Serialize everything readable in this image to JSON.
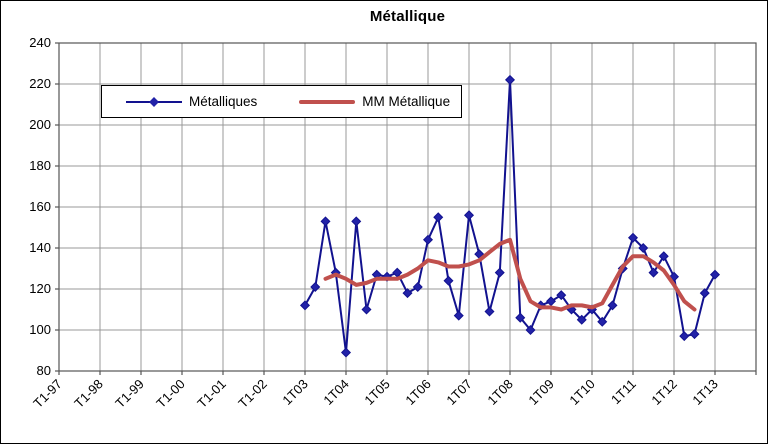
{
  "chart_data": {
    "type": "line",
    "title": "Métallique",
    "y_axis": {
      "min": 80,
      "max": 240,
      "step": 20,
      "tick_labels": [
        "240",
        "220",
        "200",
        "180",
        "160",
        "140",
        "120",
        "100",
        "80"
      ]
    },
    "x_axis": {
      "tick_labels": [
        "T1-97",
        "T1-98",
        "T1-99",
        "T1-00",
        "T1-01",
        "T1-02",
        "1T03",
        "1T04",
        "1T05",
        "1T06",
        "1T07",
        "1T08",
        "1T09",
        "1T10",
        "1T11",
        "1T12",
        "1T13"
      ],
      "quarters_per_tick": 4,
      "total_quarters": 68,
      "data_start_quarter": 24
    },
    "grid": true,
    "legend_position": "top-left-inside",
    "series": [
      {
        "name": "Métalliques",
        "style": "line-with-diamond-markers",
        "color": "#12128F",
        "marker_color": "#2222A8",
        "values": [
          112,
          121,
          153,
          128,
          89,
          153,
          110,
          127,
          126,
          128,
          118,
          121,
          144,
          155,
          124,
          107,
          156,
          137,
          109,
          128,
          222,
          106,
          100,
          112,
          114,
          117,
          110,
          105,
          110,
          104,
          112,
          130,
          145,
          140,
          128,
          136,
          126,
          97,
          98,
          118,
          127
        ]
      },
      {
        "name": "MM Métallique",
        "style": "smooth-line",
        "color": "#C0504D",
        "values": [
          null,
          null,
          125,
          127,
          125,
          122,
          123,
          125,
          125,
          125,
          127,
          130,
          134,
          133,
          131,
          131,
          132,
          134,
          138,
          142,
          144,
          125,
          114,
          111,
          111,
          110,
          112,
          112,
          111,
          113,
          122,
          131,
          136,
          136,
          133,
          129,
          122,
          114,
          110,
          null,
          null
        ]
      }
    ]
  },
  "colors": {
    "background": "#FFFFFF",
    "outer_border": "#000000",
    "gridline": "#999999",
    "plot_border": "#555555",
    "axis_tick": "#333333",
    "text": "#000000"
  }
}
